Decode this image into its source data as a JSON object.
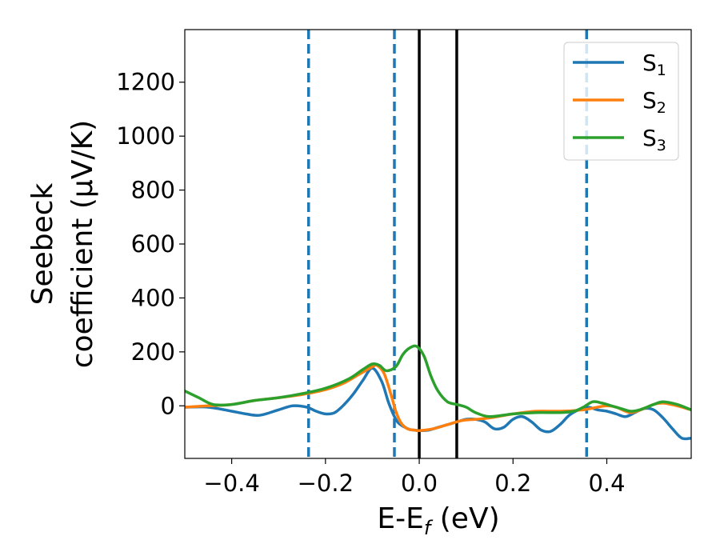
{
  "chart_data": {
    "type": "line",
    "xlabel": "E-E",
    "xlabel_sub": "f",
    "xlabel_unit": " (eV)",
    "ylabel_line1": "Seebeck",
    "ylabel_line2": "coefficient  (μV/K)",
    "xlim": [
      -0.5,
      0.58
    ],
    "ylim": [
      -195,
      1395
    ],
    "xticks": [
      -0.4,
      -0.2,
      0.0,
      0.2,
      0.4
    ],
    "xtick_labels": [
      "−0.4",
      "−0.2",
      "0.0",
      "0.2",
      "0.4"
    ],
    "yticks": [
      0,
      200,
      400,
      600,
      800,
      1000,
      1200
    ],
    "ytick_labels": [
      "0",
      "200",
      "400",
      "600",
      "800",
      "1000",
      "1200"
    ],
    "grid": false,
    "legend_position": "top-right",
    "series": [
      {
        "name": "S",
        "sub": "1",
        "color": "#1f77b4",
        "x": [
          -0.5,
          -0.45,
          -0.4,
          -0.37,
          -0.34,
          -0.3,
          -0.27,
          -0.24,
          -0.22,
          -0.2,
          -0.18,
          -0.16,
          -0.14,
          -0.12,
          -0.1,
          -0.08,
          -0.065,
          -0.05,
          -0.04,
          -0.03,
          -0.02,
          -0.01,
          0.0,
          0.02,
          0.04,
          0.06,
          0.08,
          0.1,
          0.12,
          0.14,
          0.16,
          0.18,
          0.2,
          0.22,
          0.24,
          0.26,
          0.28,
          0.3,
          0.32,
          0.34,
          0.36,
          0.38,
          0.4,
          0.42,
          0.44,
          0.46,
          0.48,
          0.5,
          0.52,
          0.54,
          0.56,
          0.58
        ],
        "y": [
          -5,
          -5,
          -20,
          -30,
          -35,
          -15,
          0,
          -5,
          -20,
          -30,
          -25,
          5,
          45,
          95,
          140,
          90,
          10,
          -50,
          -70,
          -80,
          -88,
          -90,
          -92,
          -90,
          -80,
          -70,
          -60,
          -50,
          -50,
          -60,
          -85,
          -80,
          -50,
          -40,
          -60,
          -90,
          -95,
          -70,
          -35,
          -15,
          -5,
          -15,
          -20,
          -30,
          -40,
          -25,
          -10,
          -15,
          -45,
          -85,
          -120,
          -120
        ]
      },
      {
        "name": "S",
        "sub": "2",
        "color": "#ff7f0e",
        "x": [
          -0.5,
          -0.45,
          -0.4,
          -0.35,
          -0.3,
          -0.25,
          -0.2,
          -0.16,
          -0.13,
          -0.1,
          -0.09,
          -0.075,
          -0.06,
          -0.05,
          -0.04,
          -0.03,
          -0.02,
          -0.01,
          0.0,
          0.03,
          0.06,
          0.09,
          0.12,
          0.15,
          0.2,
          0.25,
          0.3,
          0.35,
          0.38,
          0.4,
          0.42,
          0.45,
          0.48,
          0.5,
          0.52,
          0.55,
          0.58
        ],
        "y": [
          -5,
          0,
          5,
          20,
          30,
          42,
          60,
          85,
          115,
          145,
          150,
          120,
          40,
          -20,
          -60,
          -80,
          -88,
          -90,
          -92,
          -85,
          -70,
          -55,
          -50,
          -45,
          -30,
          -20,
          -20,
          -15,
          -5,
          0,
          -5,
          -25,
          -10,
          5,
          10,
          0,
          -15
        ]
      },
      {
        "name": "S",
        "sub": "3",
        "color": "#2ca02c",
        "x": [
          -0.5,
          -0.47,
          -0.44,
          -0.4,
          -0.35,
          -0.3,
          -0.25,
          -0.2,
          -0.15,
          -0.12,
          -0.1,
          -0.085,
          -0.07,
          -0.05,
          -0.035,
          -0.02,
          -0.005,
          0.01,
          0.025,
          0.04,
          0.06,
          0.08,
          0.1,
          0.12,
          0.15,
          0.2,
          0.25,
          0.3,
          0.33,
          0.35,
          0.37,
          0.39,
          0.41,
          0.43,
          0.45,
          0.47,
          0.5,
          0.52,
          0.55,
          0.58
        ],
        "y": [
          55,
          30,
          5,
          5,
          20,
          30,
          45,
          65,
          100,
          135,
          155,
          150,
          130,
          145,
          190,
          215,
          220,
          185,
          110,
          55,
          15,
          5,
          -5,
          -25,
          -40,
          -30,
          -25,
          -25,
          -20,
          -5,
          15,
          10,
          0,
          -10,
          -20,
          -15,
          5,
          15,
          5,
          -15
        ]
      }
    ],
    "vlines": [
      {
        "x": -0.236,
        "style": "dashed",
        "color": "#1f77b4"
      },
      {
        "x": -0.053,
        "style": "dashed",
        "color": "#1f77b4"
      },
      {
        "x": 0.0,
        "style": "solid",
        "color": "#000000"
      },
      {
        "x": 0.08,
        "style": "solid",
        "color": "#000000"
      },
      {
        "x": 0.357,
        "style": "dashed",
        "color": "#1f77b4"
      }
    ]
  }
}
